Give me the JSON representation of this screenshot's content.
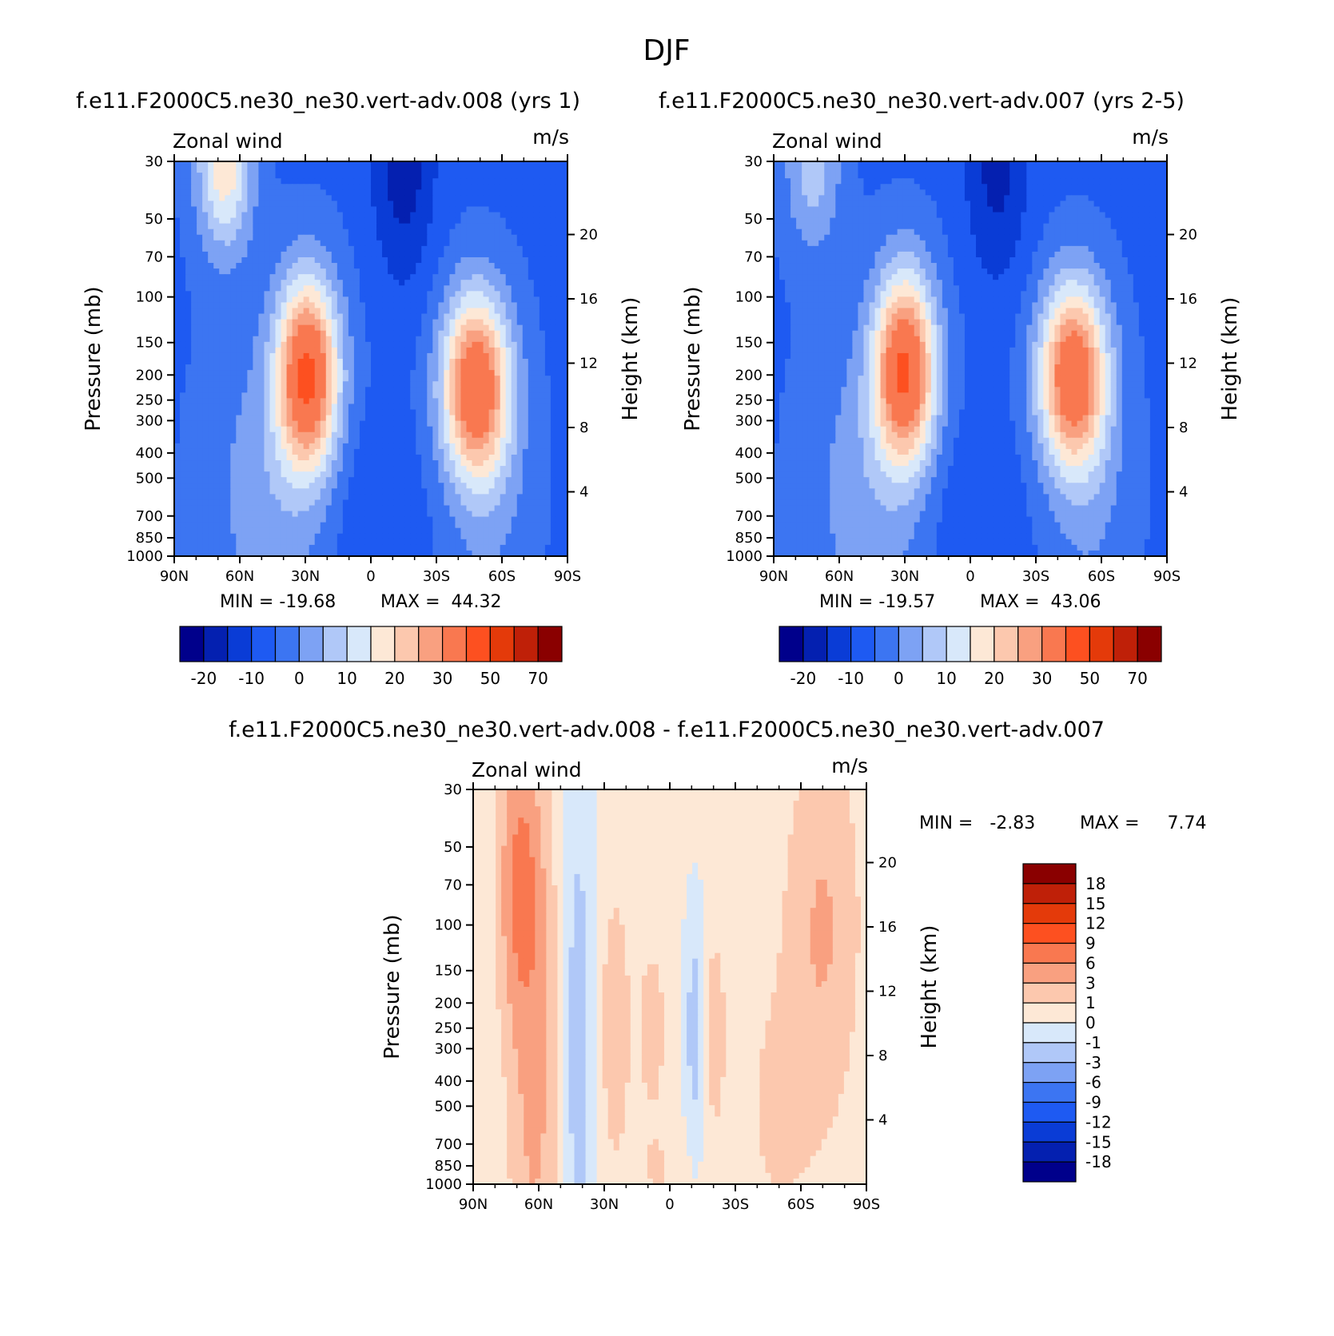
{
  "figure": {
    "title": "DJF"
  },
  "chart_data": [
    {
      "type": "contour",
      "id": "p1",
      "title": "f.e11.F2000C5.ne30_ne30.vert-adv.008 (yrs 1)",
      "left_label": "Zonal wind",
      "right_label": "m/s",
      "ylabel": "Pressure (mb)",
      "ylabel_right": "Height (km)",
      "x_ticks": [
        "90N",
        "60N",
        "30N",
        "0",
        "30S",
        "60S",
        "90S"
      ],
      "x_values": [
        90,
        60,
        30,
        0,
        -30,
        -60,
        -90
      ],
      "p_ticks": [
        "30",
        "50",
        "70",
        "100",
        "150",
        "200",
        "250",
        "300",
        "400",
        "500",
        "700",
        "850",
        "1000"
      ],
      "p_values": [
        30,
        50,
        70,
        100,
        150,
        200,
        250,
        300,
        400,
        500,
        700,
        850,
        1000
      ],
      "height_ticks": [
        "20",
        "16",
        "12",
        "8",
        "4"
      ],
      "height_values": [
        20,
        16,
        12,
        8,
        4
      ],
      "min_text": "MIN = -19.68",
      "max_text": "MAX =  44.32",
      "min": -19.68,
      "max": 44.32,
      "levels": [
        -25,
        -20,
        -15,
        -10,
        -5,
        0,
        5,
        10,
        15,
        20,
        25,
        30,
        40,
        50,
        60,
        70,
        80
      ],
      "colorbar_labels": [
        "-20",
        "-10",
        "0",
        "10",
        "20",
        "30",
        "50",
        "70"
      ],
      "colorbar_label_levels": [
        -20,
        -10,
        0,
        10,
        20,
        30,
        50,
        70
      ],
      "jets": {
        "nh_subtropical": {
          "lat": 29,
          "pressure": 200,
          "speed": 44
        },
        "sh_midlatitude": {
          "lat": -48,
          "pressure": 220,
          "speed": 41
        },
        "tropical_easterly": {
          "lat": -15,
          "pressure": 30,
          "speed": -20
        },
        "nh_stratospheric": {
          "lat": 67,
          "pressure": 30,
          "speed": 25
        }
      }
    },
    {
      "type": "contour",
      "id": "p2",
      "title": "f.e11.F2000C5.ne30_ne30.vert-adv.007 (yrs 2-5)",
      "left_label": "Zonal wind",
      "right_label": "m/s",
      "ylabel": "Pressure (mb)",
      "ylabel_right": "Height (km)",
      "x_ticks": [
        "90N",
        "60N",
        "30N",
        "0",
        "30S",
        "60S",
        "90S"
      ],
      "x_values": [
        90,
        60,
        30,
        0,
        -30,
        -60,
        -90
      ],
      "p_ticks": [
        "30",
        "50",
        "70",
        "100",
        "150",
        "200",
        "250",
        "300",
        "400",
        "500",
        "700",
        "850",
        "1000"
      ],
      "p_values": [
        30,
        50,
        70,
        100,
        150,
        200,
        250,
        300,
        400,
        500,
        700,
        850,
        1000
      ],
      "height_ticks": [
        "20",
        "16",
        "12",
        "8",
        "4"
      ],
      "height_values": [
        20,
        16,
        12,
        8,
        4
      ],
      "min_text": "MIN = -19.57",
      "max_text": "MAX =  43.06",
      "min": -19.57,
      "max": 43.06,
      "levels": [
        -25,
        -20,
        -15,
        -10,
        -5,
        0,
        5,
        10,
        15,
        20,
        25,
        30,
        40,
        50,
        60,
        70,
        80
      ],
      "colorbar_labels": [
        "-20",
        "-10",
        "0",
        "10",
        "20",
        "30",
        "50",
        "70"
      ],
      "colorbar_label_levels": [
        -20,
        -10,
        0,
        10,
        20,
        30,
        50,
        70
      ],
      "jets": {
        "nh_subtropical": {
          "lat": 30,
          "pressure": 190,
          "speed": 43
        },
        "sh_midlatitude": {
          "lat": -47,
          "pressure": 200,
          "speed": 41
        },
        "tropical_easterly": {
          "lat": -12,
          "pressure": 30,
          "speed": -19
        },
        "nh_stratospheric": {
          "lat": 72,
          "pressure": 30,
          "speed": 14
        }
      }
    },
    {
      "type": "contour",
      "id": "p3",
      "title": "f.e11.F2000C5.ne30_ne30.vert-adv.008 - f.e11.F2000C5.ne30_ne30.vert-adv.007",
      "left_label": "Zonal wind",
      "right_label": "m/s",
      "ylabel": "Pressure (mb)",
      "ylabel_right": "Height (km)",
      "x_ticks": [
        "90N",
        "60N",
        "30N",
        "0",
        "30S",
        "60S",
        "90S"
      ],
      "x_values": [
        90,
        60,
        30,
        0,
        -30,
        -60,
        -90
      ],
      "p_ticks": [
        "30",
        "50",
        "70",
        "100",
        "150",
        "200",
        "250",
        "300",
        "400",
        "500",
        "700",
        "850",
        "1000"
      ],
      "p_values": [
        30,
        50,
        70,
        100,
        150,
        200,
        250,
        300,
        400,
        500,
        700,
        850,
        1000
      ],
      "height_ticks": [
        "20",
        "16",
        "12",
        "8",
        "4"
      ],
      "height_values": [
        20,
        16,
        12,
        8,
        4
      ],
      "min_text": "MIN =   -2.83",
      "max_text": "MAX =     7.74",
      "min": -2.83,
      "max": 7.74,
      "levels": [
        -21,
        -18,
        -15,
        -12,
        -9,
        -6,
        -3,
        -1,
        0,
        1,
        3,
        6,
        9,
        12,
        15,
        18,
        21
      ],
      "colorbar_labels": [
        "18",
        "15",
        "12",
        "9",
        "6",
        "3",
        "1",
        "0",
        "-1",
        "-3",
        "-6",
        "-9",
        "-12",
        "-15",
        "-18"
      ],
      "colorbar_label_levels": [
        18,
        15,
        12,
        9,
        6,
        3,
        1,
        0,
        -1,
        -3,
        -6,
        -9,
        -12,
        -15,
        -18
      ]
    }
  ],
  "colors": {
    "background": "#ffffff",
    "palette": [
      "#00008b",
      "#0420b0",
      "#0a3cd6",
      "#1e5af2",
      "#3c75f2",
      "#7da2f4",
      "#b0c8f8",
      "#d8e8fa",
      "#fde8d6",
      "#fcc8ae",
      "#f9a080",
      "#f97850",
      "#fd5020",
      "#e43a0a",
      "#bf2008",
      "#8a0000"
    ]
  }
}
